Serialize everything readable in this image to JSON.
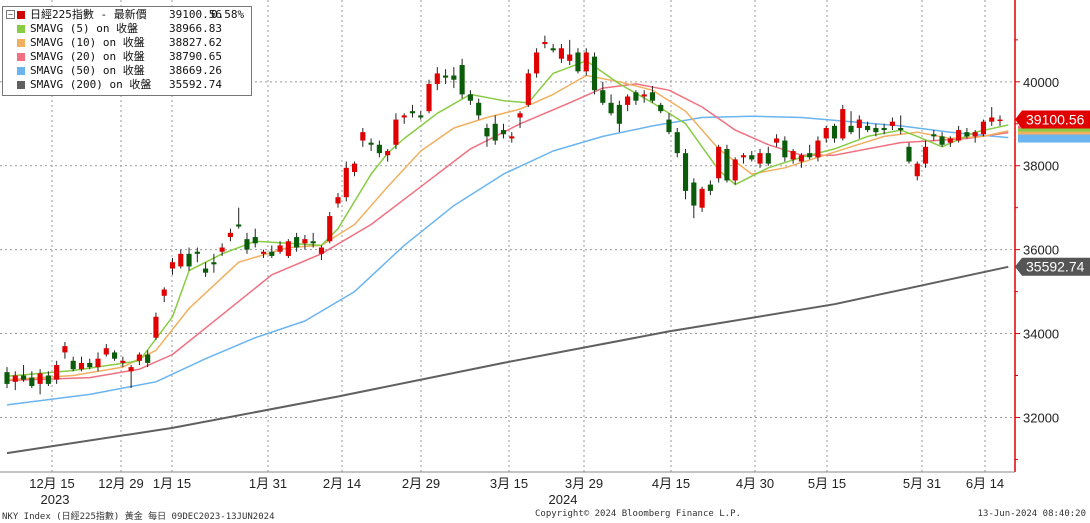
{
  "legend": {
    "items": [
      {
        "name": "日經225指數 - 最新價",
        "value": "39100.56",
        "change": "0.58%",
        "color": "#cc0000",
        "icon": "candlestick-icon"
      },
      {
        "name": "SMAVG (5)  on 收盤",
        "value": "38966.83",
        "change": "",
        "color": "#88cc44"
      },
      {
        "name": "SMAVG (10)  on 收盤",
        "value": "38827.62",
        "change": "",
        "color": "#f0b060"
      },
      {
        "name": "SMAVG (20)  on 收盤",
        "value": "38790.65",
        "change": "",
        "color": "#f07080"
      },
      {
        "name": "SMAVG (50)  on 收盤",
        "value": "38669.26",
        "change": "",
        "color": "#6ab4f0"
      },
      {
        "name": "SMAVG (200)  on 收盤",
        "value": "35592.74",
        "change": "",
        "color": "#606060"
      }
    ]
  },
  "footer": {
    "left": "NKY Index (日經225指數) 黃金  每日 09DEC2023-13JUN2024",
    "center": "Copyright© 2024 Bloomberg Finance L.P.",
    "right": "13-Jun-2024 08:40:20"
  },
  "chart_data": {
    "type": "candlestick",
    "x_tick_labels": [
      "12月 15",
      "12月 29",
      "1月 15",
      "1月 31",
      "2月 14",
      "2月 29",
      "3月 15",
      "3月 29",
      "4月 15",
      "4月 30",
      "5月 15",
      "5月 31",
      "6月 14"
    ],
    "year_labels": [
      "2023",
      "2024"
    ],
    "y_ticks": [
      32000,
      34000,
      36000,
      38000,
      40000
    ],
    "ylim": [
      30700,
      41950
    ],
    "last_price": "39100.56",
    "last_sma200": "35592.74",
    "colors": {
      "up": "#e00000",
      "down": "#0a5c0a",
      "grid": "#9a9a9a",
      "axis": "#e00000",
      "last_price_bg": "#e00000"
    },
    "candles": [
      {
        "o": 33080,
        "h": 33200,
        "l": 32700,
        "c": 32800
      },
      {
        "o": 32850,
        "h": 33100,
        "l": 32650,
        "c": 33000
      },
      {
        "o": 33000,
        "h": 33250,
        "l": 32850,
        "c": 32900
      },
      {
        "o": 32950,
        "h": 33100,
        "l": 32700,
        "c": 32750
      },
      {
        "o": 32800,
        "h": 33150,
        "l": 32550,
        "c": 33050
      },
      {
        "o": 33000,
        "h": 33100,
        "l": 32750,
        "c": 32800
      },
      {
        "o": 32900,
        "h": 33350,
        "l": 32800,
        "c": 33250
      },
      {
        "o": 33550,
        "h": 33800,
        "l": 33400,
        "c": 33700
      },
      {
        "o": 33350,
        "h": 33450,
        "l": 33100,
        "c": 33150
      },
      {
        "o": 33150,
        "h": 33450,
        "l": 33100,
        "c": 33300
      },
      {
        "o": 33300,
        "h": 33400,
        "l": 33150,
        "c": 33200
      },
      {
        "o": 33200,
        "h": 33550,
        "l": 33100,
        "c": 33400
      },
      {
        "o": 33500,
        "h": 33750,
        "l": 33450,
        "c": 33650
      },
      {
        "o": 33550,
        "h": 33600,
        "l": 33350,
        "c": 33400
      },
      {
        "o": 33300,
        "h": 33450,
        "l": 33200,
        "c": 33350
      },
      {
        "o": 33100,
        "h": 33250,
        "l": 32700,
        "c": 33200
      },
      {
        "o": 33350,
        "h": 33550,
        "l": 33250,
        "c": 33500
      },
      {
        "o": 33500,
        "h": 33600,
        "l": 33200,
        "c": 33300
      },
      {
        "o": 33900,
        "h": 34500,
        "l": 33850,
        "c": 34400
      },
      {
        "o": 34900,
        "h": 35100,
        "l": 34750,
        "c": 35050
      },
      {
        "o": 35550,
        "h": 35800,
        "l": 35400,
        "c": 35700
      },
      {
        "o": 35600,
        "h": 36000,
        "l": 35550,
        "c": 35900
      },
      {
        "o": 35900,
        "h": 36050,
        "l": 35500,
        "c": 35600
      },
      {
        "o": 35950,
        "h": 36050,
        "l": 35700,
        "c": 35900
      },
      {
        "o": 35550,
        "h": 35700,
        "l": 35350,
        "c": 35450
      },
      {
        "o": 35700,
        "h": 35900,
        "l": 35450,
        "c": 35650
      },
      {
        "o": 35950,
        "h": 36150,
        "l": 35850,
        "c": 36050
      },
      {
        "o": 36300,
        "h": 36500,
        "l": 36200,
        "c": 36400
      },
      {
        "o": 36600,
        "h": 37000,
        "l": 36500,
        "c": 36550
      },
      {
        "o": 36250,
        "h": 36400,
        "l": 35900,
        "c": 36000
      },
      {
        "o": 36300,
        "h": 36500,
        "l": 36050,
        "c": 36150
      },
      {
        "o": 35900,
        "h": 36000,
        "l": 35800,
        "c": 35950
      },
      {
        "o": 35950,
        "h": 36100,
        "l": 35800,
        "c": 35850
      },
      {
        "o": 35950,
        "h": 36200,
        "l": 35900,
        "c": 36100
      },
      {
        "o": 35850,
        "h": 36250,
        "l": 35800,
        "c": 36200
      },
      {
        "o": 36300,
        "h": 36400,
        "l": 35950,
        "c": 36050
      },
      {
        "o": 36150,
        "h": 36350,
        "l": 36000,
        "c": 36250
      },
      {
        "o": 36200,
        "h": 36400,
        "l": 36050,
        "c": 36150
      },
      {
        "o": 35900,
        "h": 36100,
        "l": 35750,
        "c": 36050
      },
      {
        "o": 36200,
        "h": 36900,
        "l": 36150,
        "c": 36800
      },
      {
        "o": 37100,
        "h": 37350,
        "l": 37000,
        "c": 37250
      },
      {
        "o": 37250,
        "h": 38100,
        "l": 37150,
        "c": 37950
      },
      {
        "o": 37850,
        "h": 38100,
        "l": 37750,
        "c": 38050
      },
      {
        "o": 38600,
        "h": 38900,
        "l": 38450,
        "c": 38800
      },
      {
        "o": 38550,
        "h": 38650,
        "l": 38350,
        "c": 38500
      },
      {
        "o": 38500,
        "h": 38600,
        "l": 38200,
        "c": 38300
      },
      {
        "o": 38250,
        "h": 38400,
        "l": 38100,
        "c": 38350
      },
      {
        "o": 38500,
        "h": 39250,
        "l": 38400,
        "c": 39100
      },
      {
        "o": 39150,
        "h": 39250,
        "l": 39000,
        "c": 39200
      },
      {
        "o": 39300,
        "h": 39450,
        "l": 39150,
        "c": 39250
      },
      {
        "o": 39200,
        "h": 39300,
        "l": 39100,
        "c": 39150
      },
      {
        "o": 39300,
        "h": 40050,
        "l": 39250,
        "c": 39950
      },
      {
        "o": 39950,
        "h": 40350,
        "l": 39800,
        "c": 40200
      },
      {
        "o": 40150,
        "h": 40300,
        "l": 39950,
        "c": 40100
      },
      {
        "o": 40150,
        "h": 40350,
        "l": 39850,
        "c": 40050
      },
      {
        "o": 40400,
        "h": 40550,
        "l": 39600,
        "c": 39700
      },
      {
        "o": 39700,
        "h": 39800,
        "l": 39450,
        "c": 39550
      },
      {
        "o": 39500,
        "h": 39600,
        "l": 39100,
        "c": 39200
      },
      {
        "o": 38900,
        "h": 39000,
        "l": 38450,
        "c": 38700
      },
      {
        "o": 39000,
        "h": 39200,
        "l": 38500,
        "c": 38600
      },
      {
        "o": 38850,
        "h": 39000,
        "l": 38650,
        "c": 38750
      },
      {
        "o": 38650,
        "h": 38800,
        "l": 38550,
        "c": 38700
      },
      {
        "o": 39150,
        "h": 39300,
        "l": 38900,
        "c": 39250
      },
      {
        "o": 39450,
        "h": 40300,
        "l": 39400,
        "c": 40200
      },
      {
        "o": 40200,
        "h": 40800,
        "l": 40100,
        "c": 40700
      },
      {
        "o": 40900,
        "h": 41100,
        "l": 40800,
        "c": 40950
      },
      {
        "o": 40800,
        "h": 40900,
        "l": 40700,
        "c": 40750
      },
      {
        "o": 40550,
        "h": 40900,
        "l": 40450,
        "c": 40800
      },
      {
        "o": 40500,
        "h": 41000,
        "l": 40400,
        "c": 40650
      },
      {
        "o": 40700,
        "h": 40800,
        "l": 40200,
        "c": 40250
      },
      {
        "o": 40250,
        "h": 40800,
        "l": 40150,
        "c": 40700
      },
      {
        "o": 40600,
        "h": 40700,
        "l": 39700,
        "c": 39800
      },
      {
        "o": 39800,
        "h": 40000,
        "l": 39450,
        "c": 39500
      },
      {
        "o": 39500,
        "h": 39700,
        "l": 39200,
        "c": 39250
      },
      {
        "o": 39450,
        "h": 39550,
        "l": 38800,
        "c": 39000
      },
      {
        "o": 39450,
        "h": 39700,
        "l": 39300,
        "c": 39650
      },
      {
        "o": 39750,
        "h": 39800,
        "l": 39450,
        "c": 39550
      },
      {
        "o": 39650,
        "h": 39800,
        "l": 39500,
        "c": 39700
      },
      {
        "o": 39750,
        "h": 39900,
        "l": 39500,
        "c": 39550
      },
      {
        "o": 39450,
        "h": 39500,
        "l": 39250,
        "c": 39300
      },
      {
        "o": 39100,
        "h": 39250,
        "l": 38750,
        "c": 38800
      },
      {
        "o": 38800,
        "h": 38900,
        "l": 38200,
        "c": 38300
      },
      {
        "o": 38300,
        "h": 38400,
        "l": 37200,
        "c": 37400
      },
      {
        "o": 37600,
        "h": 37700,
        "l": 36750,
        "c": 37050
      },
      {
        "o": 37000,
        "h": 37500,
        "l": 36900,
        "c": 37450
      },
      {
        "o": 37550,
        "h": 37650,
        "l": 37300,
        "c": 37400
      },
      {
        "o": 37700,
        "h": 38500,
        "l": 37600,
        "c": 38450
      },
      {
        "o": 38400,
        "h": 38500,
        "l": 37600,
        "c": 37650
      },
      {
        "o": 37650,
        "h": 38200,
        "l": 37550,
        "c": 38150
      },
      {
        "o": 38200,
        "h": 38300,
        "l": 38050,
        "c": 38250
      },
      {
        "o": 38250,
        "h": 38350,
        "l": 38100,
        "c": 38150
      },
      {
        "o": 38050,
        "h": 38400,
        "l": 37950,
        "c": 38300
      },
      {
        "o": 38300,
        "h": 38450,
        "l": 38000,
        "c": 38050
      },
      {
        "o": 38550,
        "h": 38750,
        "l": 38450,
        "c": 38650
      },
      {
        "o": 38600,
        "h": 38700,
        "l": 38100,
        "c": 38200
      },
      {
        "o": 38150,
        "h": 38400,
        "l": 38050,
        "c": 38350
      },
      {
        "o": 38100,
        "h": 38300,
        "l": 37950,
        "c": 38250
      },
      {
        "o": 38300,
        "h": 38500,
        "l": 38150,
        "c": 38200
      },
      {
        "o": 38200,
        "h": 38700,
        "l": 38100,
        "c": 38600
      },
      {
        "o": 38650,
        "h": 38950,
        "l": 38550,
        "c": 38900
      },
      {
        "o": 38950,
        "h": 39000,
        "l": 38550,
        "c": 38650
      },
      {
        "o": 38650,
        "h": 39450,
        "l": 38600,
        "c": 39350
      },
      {
        "o": 38950,
        "h": 39300,
        "l": 38750,
        "c": 38800
      },
      {
        "o": 38900,
        "h": 39200,
        "l": 38650,
        "c": 39100
      },
      {
        "o": 38950,
        "h": 39050,
        "l": 38800,
        "c": 38850
      },
      {
        "o": 38900,
        "h": 39000,
        "l": 38700,
        "c": 38800
      },
      {
        "o": 38900,
        "h": 39000,
        "l": 38750,
        "c": 38850
      },
      {
        "o": 38950,
        "h": 39150,
        "l": 38850,
        "c": 39050
      },
      {
        "o": 38900,
        "h": 39200,
        "l": 38750,
        "c": 38850
      },
      {
        "o": 38450,
        "h": 38550,
        "l": 38050,
        "c": 38100
      },
      {
        "o": 37750,
        "h": 38100,
        "l": 37650,
        "c": 38050
      },
      {
        "o": 38050,
        "h": 38600,
        "l": 37950,
        "c": 38450
      },
      {
        "o": 38750,
        "h": 38850,
        "l": 38600,
        "c": 38700
      },
      {
        "o": 38700,
        "h": 38800,
        "l": 38450,
        "c": 38500
      },
      {
        "o": 38550,
        "h": 38700,
        "l": 38450,
        "c": 38650
      },
      {
        "o": 38600,
        "h": 38950,
        "l": 38550,
        "c": 38850
      },
      {
        "o": 38800,
        "h": 38900,
        "l": 38650,
        "c": 38700
      },
      {
        "o": 38700,
        "h": 38850,
        "l": 38550,
        "c": 38800
      },
      {
        "o": 38750,
        "h": 39100,
        "l": 38700,
        "c": 39050
      },
      {
        "o": 39050,
        "h": 39400,
        "l": 38950,
        "c": 39150
      },
      {
        "o": 39100,
        "h": 39200,
        "l": 38950,
        "c": 39100
      }
    ],
    "sma5": [
      [
        0,
        32980
      ],
      [
        8,
        33120
      ],
      [
        16,
        33350
      ],
      [
        20,
        34400
      ],
      [
        22,
        35500
      ],
      [
        26,
        35900
      ],
      [
        30,
        36200
      ],
      [
        34,
        36150
      ],
      [
        38,
        36100
      ],
      [
        40,
        36500
      ],
      [
        44,
        37800
      ],
      [
        46,
        38300
      ],
      [
        48,
        38650
      ],
      [
        52,
        39250
      ],
      [
        56,
        39700
      ],
      [
        60,
        39550
      ],
      [
        63,
        39500
      ],
      [
        66,
        40200
      ],
      [
        70,
        40500
      ],
      [
        74,
        39950
      ],
      [
        78,
        39500
      ],
      [
        82,
        39000
      ],
      [
        86,
        37900
      ],
      [
        88,
        37550
      ],
      [
        92,
        37950
      ],
      [
        96,
        38200
      ],
      [
        100,
        38400
      ],
      [
        104,
        38700
      ],
      [
        108,
        38850
      ],
      [
        110,
        38700
      ],
      [
        113,
        38450
      ],
      [
        117,
        38800
      ],
      [
        121,
        38970
      ]
    ],
    "sma10": [
      [
        0,
        32900
      ],
      [
        8,
        33000
      ],
      [
        14,
        33200
      ],
      [
        18,
        33600
      ],
      [
        22,
        34600
      ],
      [
        28,
        35700
      ],
      [
        34,
        36050
      ],
      [
        38,
        36100
      ],
      [
        42,
        36600
      ],
      [
        46,
        37500
      ],
      [
        50,
        38350
      ],
      [
        54,
        38900
      ],
      [
        58,
        39150
      ],
      [
        62,
        39350
      ],
      [
        66,
        39700
      ],
      [
        70,
        40150
      ],
      [
        74,
        40000
      ],
      [
        78,
        39800
      ],
      [
        82,
        39300
      ],
      [
        86,
        38400
      ],
      [
        90,
        37800
      ],
      [
        94,
        37950
      ],
      [
        98,
        38200
      ],
      [
        102,
        38450
      ],
      [
        106,
        38700
      ],
      [
        110,
        38800
      ],
      [
        114,
        38650
      ],
      [
        118,
        38700
      ],
      [
        121,
        38830
      ]
    ],
    "sma20": [
      [
        0,
        32880
      ],
      [
        10,
        32950
      ],
      [
        16,
        33150
      ],
      [
        20,
        33500
      ],
      [
        26,
        34450
      ],
      [
        32,
        35400
      ],
      [
        38,
        35900
      ],
      [
        44,
        36600
      ],
      [
        50,
        37500
      ],
      [
        56,
        38400
      ],
      [
        62,
        39000
      ],
      [
        68,
        39500
      ],
      [
        72,
        39850
      ],
      [
        76,
        39950
      ],
      [
        80,
        39800
      ],
      [
        84,
        39400
      ],
      [
        88,
        38850
      ],
      [
        92,
        38500
      ],
      [
        96,
        38250
      ],
      [
        100,
        38250
      ],
      [
        104,
        38400
      ],
      [
        108,
        38550
      ],
      [
        112,
        38600
      ],
      [
        116,
        38650
      ],
      [
        121,
        38790
      ]
    ],
    "sma50": [
      [
        0,
        32300
      ],
      [
        10,
        32550
      ],
      [
        18,
        32850
      ],
      [
        24,
        33400
      ],
      [
        30,
        33900
      ],
      [
        36,
        34300
      ],
      [
        42,
        35000
      ],
      [
        48,
        36100
      ],
      [
        54,
        37050
      ],
      [
        60,
        37800
      ],
      [
        66,
        38350
      ],
      [
        72,
        38700
      ],
      [
        78,
        38950
      ],
      [
        84,
        39150
      ],
      [
        90,
        39180
      ],
      [
        96,
        39150
      ],
      [
        102,
        39050
      ],
      [
        108,
        38950
      ],
      [
        114,
        38800
      ],
      [
        121,
        38670
      ]
    ],
    "sma200": [
      [
        0,
        31150
      ],
      [
        20,
        31750
      ],
      [
        40,
        32500
      ],
      [
        60,
        33300
      ],
      [
        80,
        34050
      ],
      [
        100,
        34700
      ],
      [
        121,
        35590
      ]
    ]
  }
}
